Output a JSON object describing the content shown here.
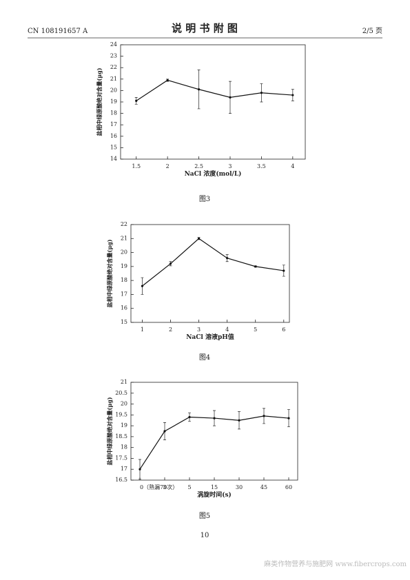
{
  "header": {
    "doc_number": "CN 108191657 A",
    "title": "说 明 书 附 图",
    "page": "2/5 页"
  },
  "chart_data": [
    {
      "type": "line",
      "caption": "图3",
      "x_label": "NaCl 浓度(mol/L)",
      "y_label": "盐相中绿原酸绝对含量(μg)",
      "x": [
        1.5,
        2,
        2.5,
        3,
        3.5,
        4
      ],
      "xlim": [
        1.25,
        4.2
      ],
      "xticks": [
        1.5,
        2,
        2.5,
        3,
        3.5,
        4
      ],
      "values": [
        19.1,
        20.9,
        20.1,
        19.4,
        19.8,
        19.6
      ],
      "errors": [
        0.3,
        0.1,
        1.7,
        1.4,
        0.8,
        0.5
      ],
      "ylim": [
        14,
        24
      ],
      "yticks": [
        14,
        15,
        16,
        17,
        18,
        19,
        20,
        21,
        22,
        23,
        24
      ],
      "color": "#111111"
    },
    {
      "type": "line",
      "caption": "图4",
      "x_label": "NaCl 溶液pH值",
      "y_label": "盐相中绿原酸绝对含量(μg)",
      "x": [
        1,
        2,
        3,
        4,
        5,
        6
      ],
      "xlim": [
        0.6,
        6.2
      ],
      "xticks": [
        1,
        2,
        3,
        4,
        5,
        6
      ],
      "values": [
        17.6,
        19.2,
        21.0,
        19.6,
        19.0,
        18.7
      ],
      "errors": [
        0.6,
        0.15,
        0.08,
        0.25,
        0.05,
        0.4
      ],
      "ylim": [
        15,
        22
      ],
      "yticks": [
        15,
        16,
        17,
        18,
        19,
        20,
        21,
        22
      ],
      "color": "#111111"
    },
    {
      "type": "line",
      "caption": "图5",
      "x_label": "涡旋时间(s)",
      "y_label": "盐相中绿原酸绝对含量(μg)",
      "categories": [
        "0（熟漏70次）",
        "3",
        "5",
        "15",
        "30",
        "45",
        "60"
      ],
      "values": [
        17.0,
        18.75,
        19.4,
        19.35,
        19.25,
        19.45,
        19.35
      ],
      "errors": [
        0.45,
        0.4,
        0.2,
        0.35,
        0.4,
        0.35,
        0.4
      ],
      "ylim": [
        16.5,
        21
      ],
      "yticks": [
        16.5,
        17,
        17.5,
        18,
        18.5,
        19,
        19.5,
        20,
        20.5,
        21
      ],
      "color": "#111111"
    }
  ],
  "footer": {
    "page_number": "10",
    "watermark": "麻类作物营养与施肥网 www.fibercrops.com"
  }
}
